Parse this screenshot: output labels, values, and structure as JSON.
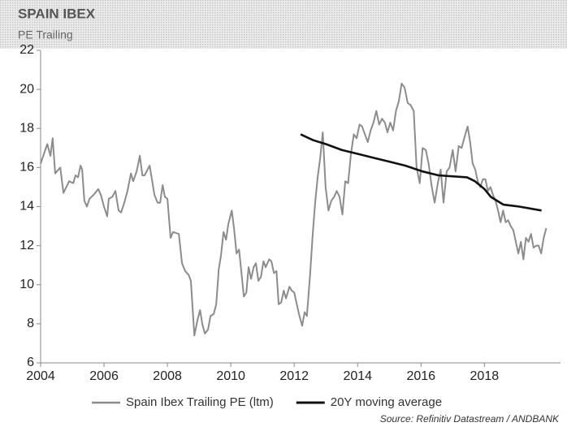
{
  "chart_data": {
    "type": "line",
    "title": "SPAIN IBEX",
    "subtitle": "PE Trailing",
    "source": "Source: Refinitiv Datastream / ANDBANK",
    "xlim": [
      2004,
      2020.4
    ],
    "xticks": [
      2004,
      2006,
      2008,
      2010,
      2012,
      2014,
      2016,
      2018
    ],
    "ylim": [
      6,
      22
    ],
    "yticks": [
      6,
      8,
      10,
      12,
      14,
      16,
      18,
      20,
      22
    ],
    "grid": false,
    "legend": "bottom",
    "series": [
      {
        "name": "Spain Ibex Trailing PE (ltm)",
        "color": "#8c8c8c",
        "x": [
          2004.0,
          2004.21,
          2004.31,
          2004.38,
          2004.46,
          2004.62,
          2004.72,
          2004.9,
          2005.03,
          2005.1,
          2005.18,
          2005.26,
          2005.31,
          2005.38,
          2005.46,
          2005.54,
          2005.67,
          2005.82,
          2005.9,
          2006.0,
          2006.1,
          2006.15,
          2006.26,
          2006.36,
          2006.46,
          2006.54,
          2006.64,
          2006.74,
          2006.85,
          2006.92,
          2007.03,
          2007.13,
          2007.21,
          2007.28,
          2007.44,
          2007.51,
          2007.59,
          2007.69,
          2007.77,
          2007.85,
          2007.92,
          2008.0,
          2008.1,
          2008.18,
          2008.36,
          2008.46,
          2008.56,
          2008.67,
          2008.74,
          2008.85,
          2008.95,
          2009.03,
          2009.1,
          2009.18,
          2009.28,
          2009.36,
          2009.46,
          2009.54,
          2009.62,
          2009.69,
          2009.77,
          2009.85,
          2009.92,
          2010.03,
          2010.1,
          2010.18,
          2010.26,
          2010.33,
          2010.41,
          2010.49,
          2010.56,
          2010.64,
          2010.72,
          2010.79,
          2010.87,
          2010.95,
          2011.03,
          2011.1,
          2011.21,
          2011.28,
          2011.36,
          2011.44,
          2011.51,
          2011.59,
          2011.67,
          2011.74,
          2011.85,
          2011.92,
          2012.0,
          2012.15,
          2012.25,
          2012.33,
          2012.4,
          2012.5,
          2012.58,
          2012.66,
          2012.74,
          2012.82,
          2012.9,
          2012.99,
          2013.08,
          2013.17,
          2013.26,
          2013.34,
          2013.43,
          2013.52,
          2013.61,
          2013.7,
          2013.79,
          2013.88,
          2013.97,
          2014.06,
          2014.14,
          2014.23,
          2014.32,
          2014.41,
          2014.5,
          2014.59,
          2014.68,
          2014.77,
          2014.86,
          2014.94,
          2015.03,
          2015.12,
          2015.21,
          2015.3,
          2015.39,
          2015.48,
          2015.58,
          2015.67,
          2015.77,
          2015.86,
          2015.96,
          2016.05,
          2016.15,
          2016.24,
          2016.34,
          2016.43,
          2016.53,
          2016.62,
          2016.71,
          2016.81,
          2016.9,
          2017.0,
          2017.09,
          2017.19,
          2017.28,
          2017.38,
          2017.47,
          2017.55,
          2017.63,
          2017.71,
          2017.79,
          2017.87,
          2017.95,
          2018.03,
          2018.11,
          2018.19,
          2018.27,
          2018.35,
          2018.43,
          2018.51,
          2018.59,
          2018.67,
          2018.75,
          2018.83,
          2018.91,
          2018.99,
          2019.07,
          2019.15,
          2019.23,
          2019.31,
          2019.39,
          2019.47,
          2019.55,
          2019.63,
          2019.71,
          2019.79,
          2019.87,
          2019.95
        ],
        "values": [
          16.2,
          17.2,
          16.6,
          17.5,
          15.7,
          16.0,
          14.7,
          15.3,
          15.2,
          15.6,
          15.5,
          16.1,
          15.9,
          14.3,
          14.0,
          14.4,
          14.6,
          14.9,
          14.6,
          14.0,
          13.5,
          14.4,
          14.5,
          14.8,
          13.8,
          13.7,
          14.2,
          14.8,
          15.7,
          15.3,
          15.8,
          16.6,
          15.6,
          15.6,
          16.1,
          15.4,
          14.6,
          14.2,
          14.2,
          15.1,
          14.5,
          14.4,
          12.4,
          12.7,
          12.6,
          11.1,
          10.7,
          10.5,
          10.2,
          7.4,
          8.2,
          8.7,
          8.0,
          7.5,
          7.7,
          8.4,
          8.5,
          9.0,
          10.8,
          11.5,
          12.7,
          12.3,
          13.1,
          13.8,
          12.9,
          11.6,
          11.8,
          10.7,
          9.4,
          9.6,
          10.9,
          10.3,
          10.9,
          11.1,
          10.2,
          10.4,
          11.2,
          10.9,
          11.3,
          11.2,
          10.6,
          10.7,
          9.0,
          9.1,
          9.7,
          9.3,
          9.9,
          9.7,
          9.6,
          8.5,
          7.9,
          8.6,
          8.4,
          10.5,
          12.5,
          14.2,
          15.5,
          16.5,
          17.8,
          15.0,
          13.8,
          14.3,
          14.5,
          14.8,
          14.5,
          13.6,
          15.3,
          15.2,
          16.7,
          17.7,
          17.5,
          18.2,
          18.1,
          17.7,
          17.3,
          17.9,
          18.3,
          18.9,
          18.2,
          18.5,
          18.3,
          17.8,
          18.3,
          17.9,
          18.9,
          19.4,
          20.3,
          20.1,
          19.3,
          19.2,
          18.9,
          16.0,
          15.2,
          17.0,
          16.9,
          16.2,
          15.0,
          14.2,
          15.2,
          15.9,
          14.2,
          15.8,
          16.0,
          16.9,
          15.8,
          17.1,
          17.0,
          17.6,
          18.1,
          17.3,
          16.2,
          15.9,
          15.3,
          15.0,
          15.4,
          15.4,
          14.8,
          15.0,
          14.6,
          14.3,
          13.8,
          13.2,
          13.8,
          13.2,
          13.3,
          13.0,
          12.8,
          12.2,
          11.6,
          12.2,
          11.3,
          12.4,
          12.2,
          12.6,
          11.9,
          12.0,
          12.0,
          11.6,
          12.4,
          12.9
        ]
      },
      {
        "name": "20Y moving average",
        "color": "#111111",
        "x": [
          2012.2,
          2012.6,
          2013.0,
          2013.5,
          2014.0,
          2014.5,
          2015.0,
          2015.5,
          2016.05,
          2016.55,
          2017.45,
          2017.7,
          2018.0,
          2018.2,
          2018.6,
          2019.1,
          2019.8
        ],
        "values": [
          17.7,
          17.4,
          17.2,
          16.9,
          16.7,
          16.5,
          16.3,
          16.1,
          15.8,
          15.6,
          15.5,
          15.3,
          14.9,
          14.5,
          14.1,
          14.0,
          13.8
        ]
      }
    ]
  }
}
